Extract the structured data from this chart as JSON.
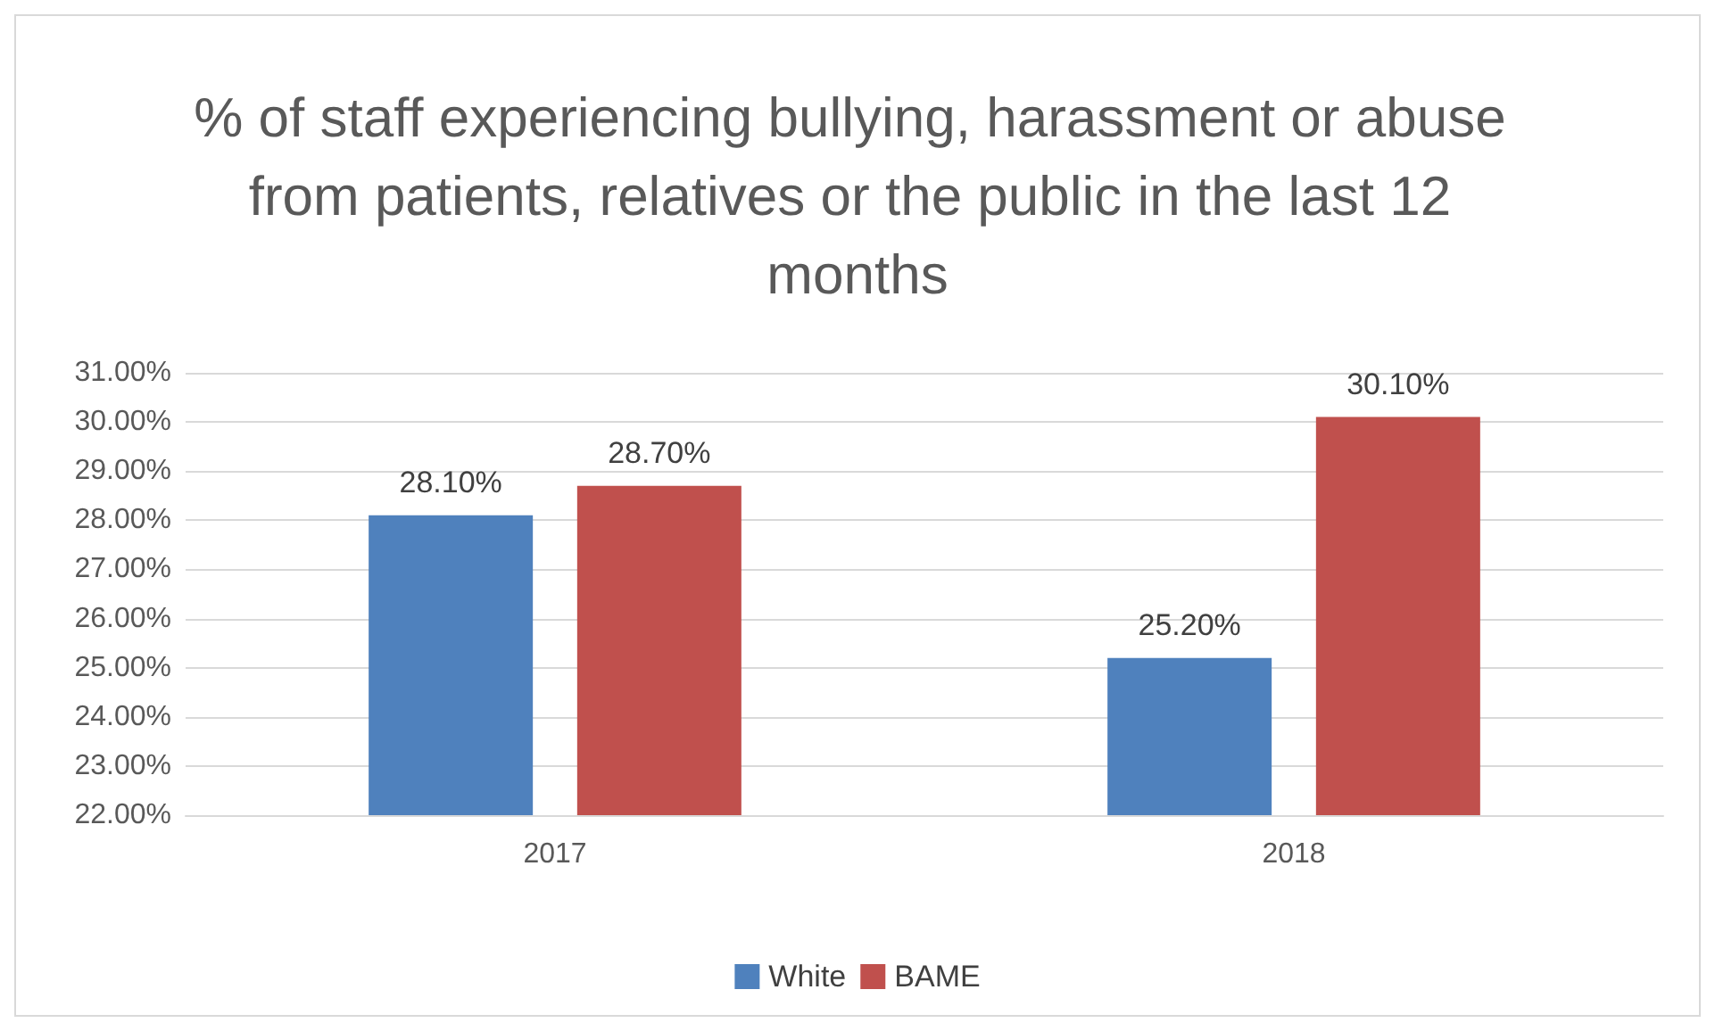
{
  "chart_data": {
    "type": "bar",
    "title": "% of staff experiencing bullying, harassment or abuse from patients, relatives or the public in the last 12 months",
    "categories": [
      "2017",
      "2018"
    ],
    "series": [
      {
        "name": "White",
        "color": "#4f81bd",
        "values": [
          28.1,
          25.2
        ],
        "value_labels": [
          "28.10%",
          "25.20%"
        ]
      },
      {
        "name": "BAME",
        "color": "#c0504d",
        "values": [
          28.7,
          30.1
        ],
        "value_labels": [
          "28.70%",
          "30.10%"
        ]
      }
    ],
    "ylim": [
      22,
      31
    ],
    "yticks": [
      {
        "value": 22,
        "label": "22.00%"
      },
      {
        "value": 23,
        "label": "23.00%"
      },
      {
        "value": 24,
        "label": "24.00%"
      },
      {
        "value": 25,
        "label": "25.00%"
      },
      {
        "value": 26,
        "label": "26.00%"
      },
      {
        "value": 27,
        "label": "27.00%"
      },
      {
        "value": 28,
        "label": "28.00%"
      },
      {
        "value": 29,
        "label": "29.00%"
      },
      {
        "value": 30,
        "label": "30.00%"
      },
      {
        "value": 31,
        "label": "31.00%"
      }
    ],
    "grid": "y",
    "legend": "bottom"
  }
}
